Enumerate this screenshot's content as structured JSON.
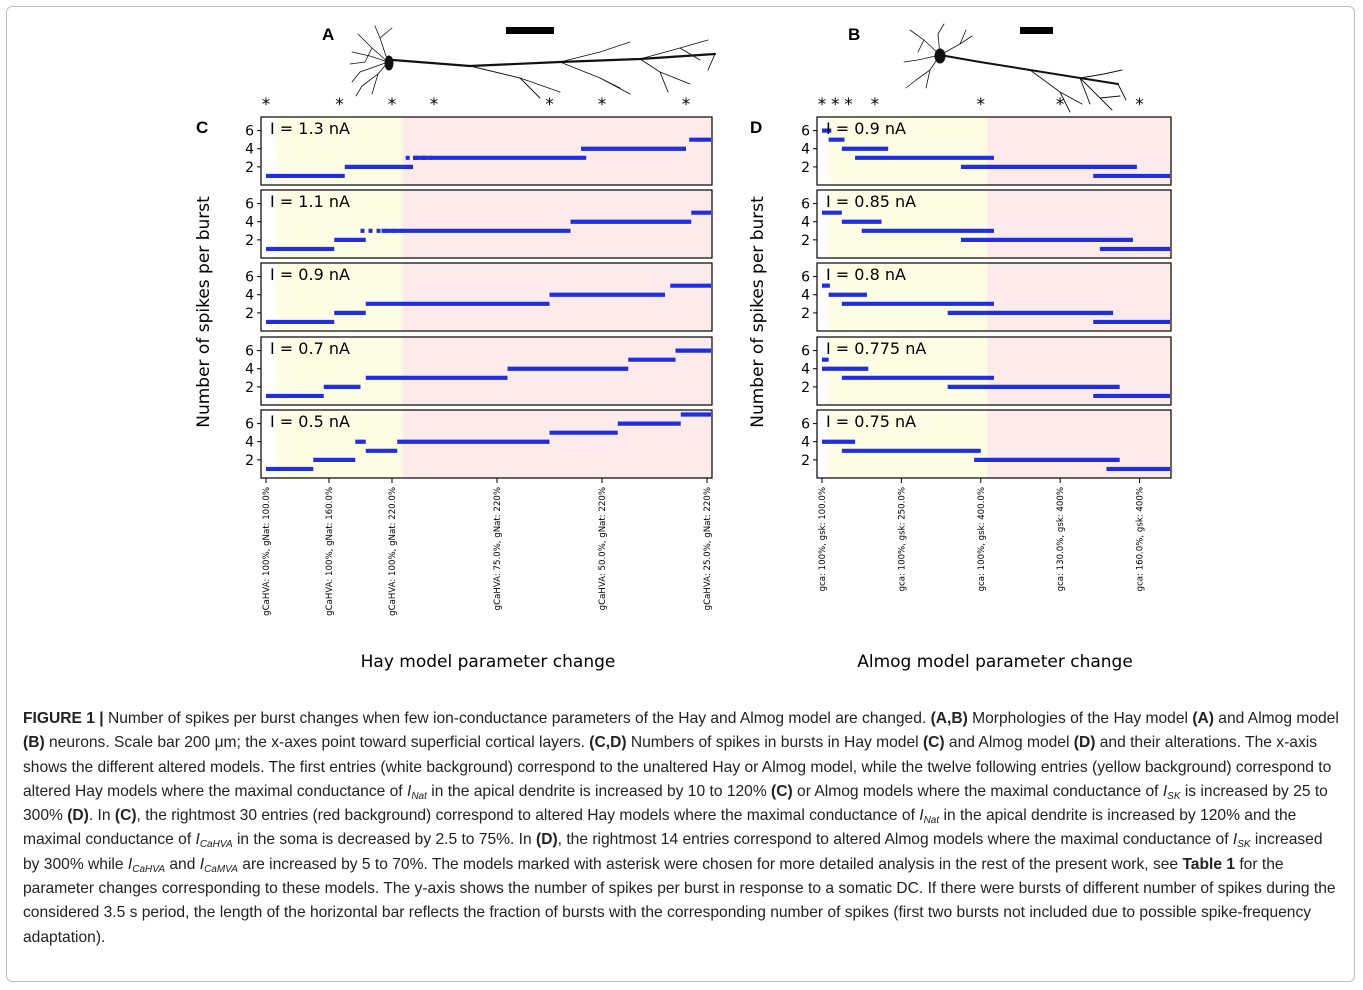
{
  "figure": {
    "colors": {
      "white_region": "#ffffff",
      "yellow_region": "#fdfde4",
      "red_region": "#fdebeb",
      "data": "#1f2fe0",
      "frame": "#000000"
    },
    "panel_labels": {
      "A": "A",
      "B": "B",
      "C": "C",
      "D": "D"
    },
    "asterisk": "*",
    "ylabel_left": "Number of spikes per burst",
    "ylabel_right": "Number of spikes per burst",
    "xlabel_left": "Hay model parameter change",
    "xlabel_right": "Almog model parameter change"
  },
  "caption": {
    "lead": "FIGURE 1 |",
    "s1": " Number of spikes per burst changes when few ion-conductance parameters of the Hay and Almog model are changed. ",
    "ab": "(A,B)",
    "s2": " Morphologies of the Hay model ",
    "a": "(A)",
    "s3": " and Almog model ",
    "b": "(B)",
    "s4": " neurons. Scale bar 200 μm; the x-axes point toward superficial cortical layers. ",
    "cd": "(C,D)",
    "s5": " Numbers of spikes in bursts in Hay model ",
    "c1": "(C)",
    "s6": " and Almog model ",
    "d1": "(D)",
    "s7": " and their alterations. The x-axis shows the different altered models. The first entries (white background) correspond to the unaltered Hay or Almog model, while the twelve following entries (yellow background) correspond to altered Hay models where the maximal conductance of ",
    "i_nat_1": "I",
    "i_nat_1_sub": "Nat",
    "s8": " in the apical dendrite is increased by 10 to 120% ",
    "c2": "(C)",
    "s9": " or Almog models where the maximal conductance of ",
    "i_sk_1": "I",
    "i_sk_1_sub": "SK",
    "s10": " is increased by 25 to 300% ",
    "d2": "(D)",
    "s11": ". In ",
    "c3": "(C)",
    "s12": ", the rightmost 30 entries (red background) correspond to altered Hay models where the maximal conductance of ",
    "i_nat_2": "I",
    "i_nat_2_sub": "Nat",
    "s13": " in the apical dendrite is increased by 120% and the maximal conductance of ",
    "i_cahva_1": "I",
    "i_cahva_1_sub": "CaHVA",
    "s14": " in the soma is decreased by 2.5 to 75%. In ",
    "d3": "(D)",
    "s15": ", the rightmost 14 entries correspond to altered Almog models where the maximal conductance of ",
    "i_sk_2": "I",
    "i_sk_2_sub": "SK",
    "s16": " increased by 300% while ",
    "i_cahva_2": "I",
    "i_cahva_2_sub": "CaHVA",
    "s17": " and ",
    "i_camva": "I",
    "i_camva_sub": "CaMVA",
    "s18": " are increased by 5 to 70%. The models marked with asterisk were chosen for more detailed analysis in the rest of the present work, see ",
    "table_ref": "Table 1",
    "s19": " for the parameter changes corresponding to these models. The y-axis shows the number of spikes per burst in response to a somatic DC. If there were bursts of different number of spikes during the considered 3.5 s period, the length of the horizontal bar reflects the fraction of bursts with the corresponding number of spikes (first two bursts not included due to possible spike-frequency adaptation)."
  },
  "chart_data": [
    {
      "panel": "C",
      "type": "scatter",
      "ylabel": "Number of spikes per burst",
      "xlabel": "Hay model parameter change",
      "n_models": 43,
      "region_boundaries": {
        "white_end": 1,
        "yellow_end": 13
      },
      "ylim": [
        0,
        7.5
      ],
      "yticks": [
        2,
        4,
        6
      ],
      "xticks": [
        {
          "model": 0,
          "label": "gCaHVA: 100%, gNat: 100.0%"
        },
        {
          "model": 6,
          "label": "gCaHVA: 100%, gNat: 160.0%"
        },
        {
          "model": 12,
          "label": "gCaHVA: 100%, gNat: 220.0%"
        },
        {
          "model": 22,
          "label": "gCaHVA: 75.0%, gNat: 220%"
        },
        {
          "model": 32,
          "label": "gCaHVA: 50.0%, gNat: 220%"
        },
        {
          "model": 42,
          "label": "gCaHVA: 25.0%, gNat: 220%"
        }
      ],
      "asterisk_models": [
        0,
        7,
        12,
        16,
        27,
        32,
        40
      ],
      "subplots": [
        {
          "current": "I = 1.3 nA",
          "steps": [
            {
              "x0": 0,
              "x1": 7.5,
              "y": 1
            },
            {
              "x0": 7.5,
              "x1": 14,
              "y": 2
            },
            {
              "x0": 13.3,
              "x1": 15.8,
              "y": 3,
              "dotted": true
            },
            {
              "x0": 14,
              "x1": 30.5,
              "y": 3
            },
            {
              "x0": 30,
              "x1": 40,
              "y": 4
            },
            {
              "x0": 40.3,
              "x1": 43,
              "y": 5
            }
          ]
        },
        {
          "current": "I = 1.1 nA",
          "steps": [
            {
              "x0": 0,
              "x1": 6.5,
              "y": 1
            },
            {
              "x0": 6.5,
              "x1": 9.5,
              "y": 2
            },
            {
              "x0": 9,
              "x1": 13,
              "y": 3,
              "dotted": true
            },
            {
              "x0": 11,
              "x1": 29,
              "y": 3
            },
            {
              "x0": 29,
              "x1": 40.5,
              "y": 4
            },
            {
              "x0": 40.5,
              "x1": 43,
              "y": 5
            }
          ]
        },
        {
          "current": "I = 0.9 nA",
          "steps": [
            {
              "x0": 0,
              "x1": 6.5,
              "y": 1
            },
            {
              "x0": 6.5,
              "x1": 9.5,
              "y": 2
            },
            {
              "x0": 9.5,
              "x1": 27,
              "y": 3
            },
            {
              "x0": 27,
              "x1": 38,
              "y": 4
            },
            {
              "x0": 38.5,
              "x1": 43,
              "y": 5
            }
          ]
        },
        {
          "current": "I = 0.7 nA",
          "steps": [
            {
              "x0": 0,
              "x1": 5.5,
              "y": 1
            },
            {
              "x0": 5.5,
              "x1": 9,
              "y": 2
            },
            {
              "x0": 9.5,
              "x1": 23,
              "y": 3
            },
            {
              "x0": 23,
              "x1": 34.5,
              "y": 4
            },
            {
              "x0": 34.5,
              "x1": 39,
              "y": 5
            },
            {
              "x0": 39,
              "x1": 43,
              "y": 6
            }
          ]
        },
        {
          "current": "I = 0.5 nA",
          "steps": [
            {
              "x0": 0,
              "x1": 4.5,
              "y": 1
            },
            {
              "x0": 4.5,
              "x1": 8.5,
              "y": 2
            },
            {
              "x0": 8.5,
              "x1": 9.5,
              "y": 4
            },
            {
              "x0": 9.5,
              "x1": 12.5,
              "y": 3
            },
            {
              "x0": 12.5,
              "x1": 27,
              "y": 4
            },
            {
              "x0": 27,
              "x1": 33.5,
              "y": 5
            },
            {
              "x0": 33.5,
              "x1": 39.5,
              "y": 6
            },
            {
              "x0": 39.5,
              "x1": 43,
              "y": 7
            }
          ]
        }
      ]
    },
    {
      "panel": "D",
      "type": "scatter",
      "ylabel": "Number of spikes per burst",
      "xlabel": "Almog model parameter change",
      "n_models": 27,
      "region_boundaries": {
        "white_end": 0.5,
        "yellow_end": 12.5
      },
      "ylim": [
        0,
        7.5
      ],
      "yticks": [
        2,
        4,
        6
      ],
      "xticks": [
        {
          "model": 0,
          "label": "gca: 100%, gsk: 100.0%"
        },
        {
          "model": 6,
          "label": "gca: 100%, gsk: 250.0%"
        },
        {
          "model": 12,
          "label": "gca: 100%, gsk: 400.0%"
        },
        {
          "model": 18,
          "label": "gca: 130.0%, gsk: 400%"
        },
        {
          "model": 24,
          "label": "gca: 160.0%, gsk: 400%"
        }
      ],
      "asterisk_models": [
        0,
        1,
        2,
        4,
        12,
        18,
        24
      ],
      "subplots": [
        {
          "current": "I = 0.9 nA",
          "steps": [
            {
              "x0": 0,
              "x1": 0.7,
              "y": 6
            },
            {
              "x0": 0.5,
              "x1": 1.7,
              "y": 5
            },
            {
              "x0": 1.5,
              "x1": 5,
              "y": 4
            },
            {
              "x0": 2.5,
              "x1": 13,
              "y": 3
            },
            {
              "x0": 10.5,
              "x1": 23.8,
              "y": 2
            },
            {
              "x0": 20.5,
              "x1": 27,
              "y": 1
            }
          ]
        },
        {
          "current": "I = 0.85 nA",
          "steps": [
            {
              "x0": 0,
              "x1": 1.5,
              "y": 5
            },
            {
              "x0": 1.5,
              "x1": 4.5,
              "y": 4
            },
            {
              "x0": 3,
              "x1": 13,
              "y": 3
            },
            {
              "x0": 10.5,
              "x1": 23.5,
              "y": 2
            },
            {
              "x0": 21,
              "x1": 27,
              "y": 1
            }
          ]
        },
        {
          "current": "I = 0.8 nA",
          "steps": [
            {
              "x0": 0,
              "x1": 0.6,
              "y": 5
            },
            {
              "x0": 0.5,
              "x1": 3.4,
              "y": 4
            },
            {
              "x0": 1.5,
              "x1": 13,
              "y": 3
            },
            {
              "x0": 9.5,
              "x1": 22,
              "y": 2
            },
            {
              "x0": 20.5,
              "x1": 27,
              "y": 1
            }
          ]
        },
        {
          "current": "I = 0.775 nA",
          "steps": [
            {
              "x0": 0,
              "x1": 0.5,
              "y": 5
            },
            {
              "x0": 0,
              "x1": 3.5,
              "y": 4
            },
            {
              "x0": 1.5,
              "x1": 13,
              "y": 3
            },
            {
              "x0": 9.5,
              "x1": 22.5,
              "y": 2
            },
            {
              "x0": 20.5,
              "x1": 27,
              "y": 1
            }
          ]
        },
        {
          "current": "I = 0.75 nA",
          "steps": [
            {
              "x0": 0,
              "x1": 2.5,
              "y": 4
            },
            {
              "x0": 1.5,
              "x1": 12,
              "y": 3
            },
            {
              "x0": 11.5,
              "x1": 22.5,
              "y": 2
            },
            {
              "x0": 21.5,
              "x1": 27,
              "y": 1
            }
          ]
        }
      ]
    }
  ]
}
